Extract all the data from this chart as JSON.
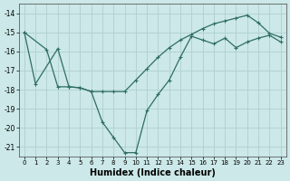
{
  "xlabel": "Humidex (Indice chaleur)",
  "bg_color": "#cce8e8",
  "grid_color": "#b0d0d0",
  "line_color": "#2e6e60",
  "xlim": [
    -0.5,
    23.5
  ],
  "ylim": [
    -21.5,
    -13.5
  ],
  "yticks": [
    -21,
    -20,
    -19,
    -18,
    -17,
    -16,
    -15,
    -14
  ],
  "xticks": [
    0,
    1,
    2,
    3,
    4,
    5,
    6,
    7,
    8,
    9,
    10,
    11,
    12,
    13,
    14,
    15,
    16,
    17,
    18,
    19,
    20,
    21,
    22,
    23
  ],
  "line1_x": [
    0,
    2,
    3,
    4,
    5,
    6,
    7,
    8,
    9,
    10,
    11,
    12,
    13,
    14,
    15,
    16,
    17,
    18,
    19,
    20,
    21,
    22,
    23
  ],
  "line1_y": [
    -15.0,
    -15.9,
    -17.85,
    -17.85,
    -17.9,
    -18.1,
    -18.1,
    -18.1,
    -18.1,
    -17.5,
    -16.9,
    -16.3,
    -15.8,
    -15.4,
    -15.1,
    -14.8,
    -14.55,
    -14.4,
    -14.25,
    -14.1,
    -14.5,
    -15.05,
    -15.25
  ],
  "line2_x": [
    0,
    1,
    3,
    4,
    5,
    6,
    7,
    8,
    9,
    10,
    11,
    12,
    13,
    14,
    15,
    16,
    17,
    18,
    19,
    20,
    21,
    22,
    23
  ],
  "line2_y": [
    -15.0,
    -17.7,
    -15.85,
    -17.85,
    -17.9,
    -18.1,
    -19.7,
    -20.5,
    -21.3,
    -21.3,
    -19.1,
    -18.25,
    -17.5,
    -16.3,
    -15.2,
    -15.4,
    -15.6,
    -15.3,
    -15.8,
    -15.5,
    -15.3,
    -15.15,
    -15.5
  ]
}
